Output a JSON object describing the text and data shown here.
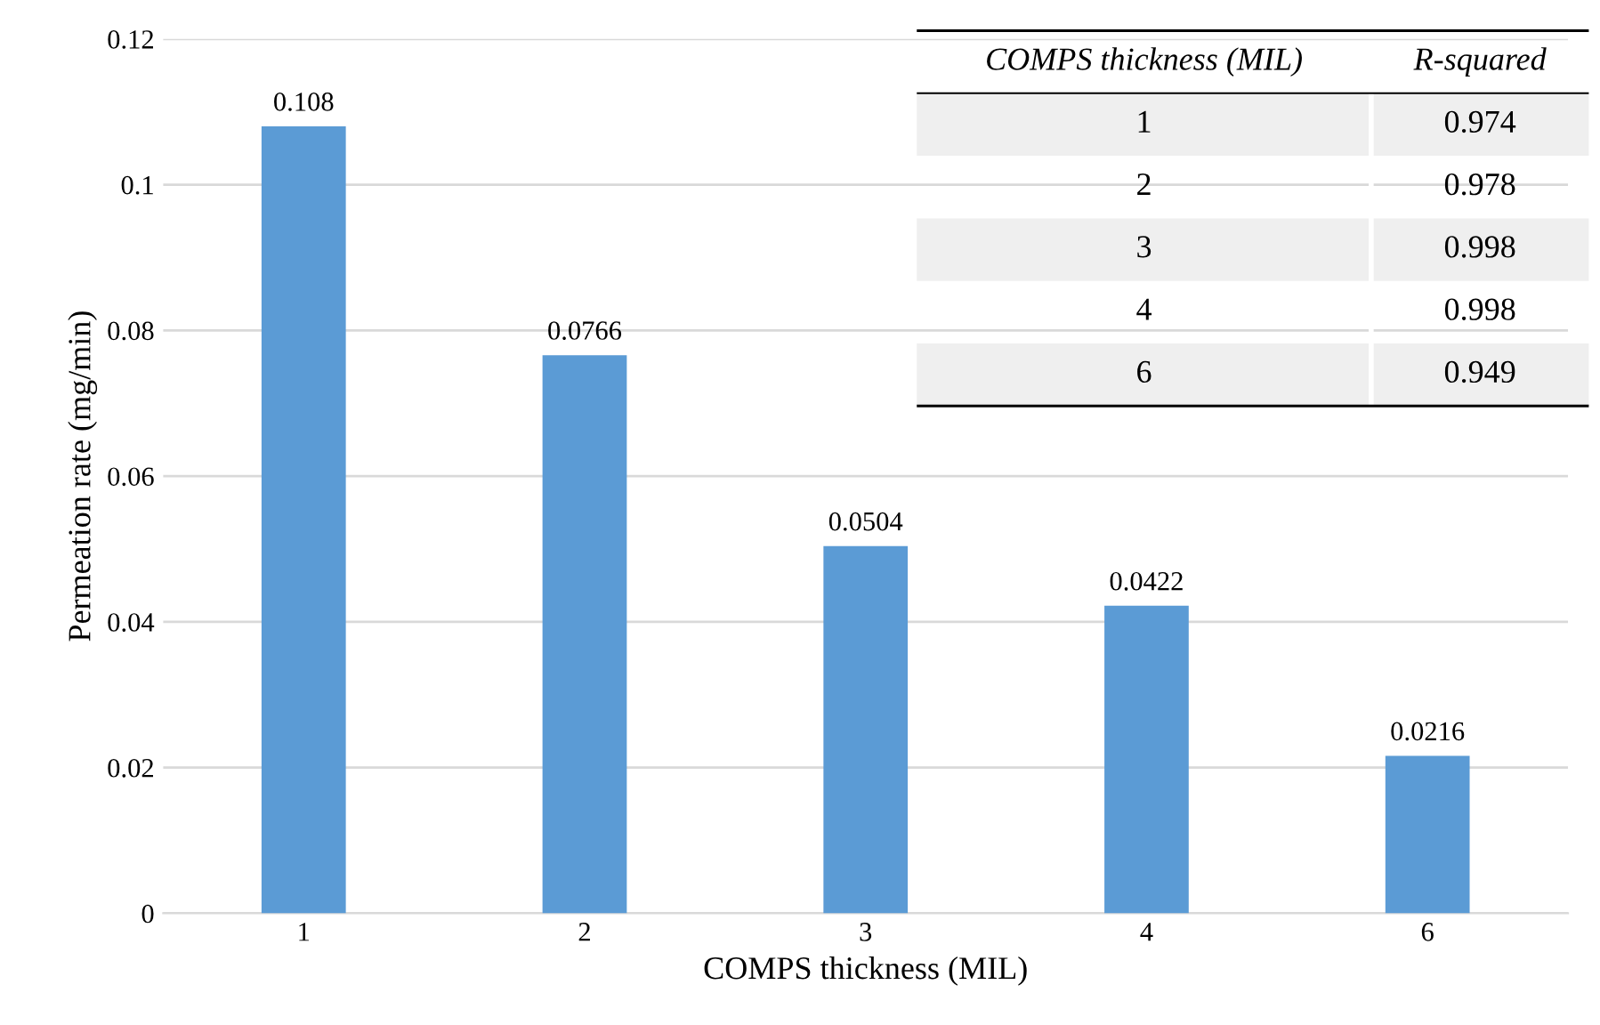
{
  "chart_data": {
    "type": "bar",
    "xlabel": "COMPS thickness (MIL)",
    "ylabel": "Permeation rate (mg/min)",
    "categories": [
      "1",
      "2",
      "3",
      "4",
      "6"
    ],
    "values": [
      0.108,
      0.0766,
      0.0504,
      0.0422,
      0.0216
    ],
    "color": "#5b9bd5",
    "ylim": [
      0,
      0.12
    ],
    "yticks": [
      0,
      0.02,
      0.04,
      0.06,
      0.08,
      0.1,
      0.12
    ],
    "grid": "y",
    "data_labels": true,
    "annotations": [
      "COMPS thickness (MIL)",
      "R-squared",
      "1",
      "0.974",
      "2",
      "0.978",
      "3",
      "0.998",
      "4",
      "0.998",
      "6",
      "0.949"
    ]
  }
}
